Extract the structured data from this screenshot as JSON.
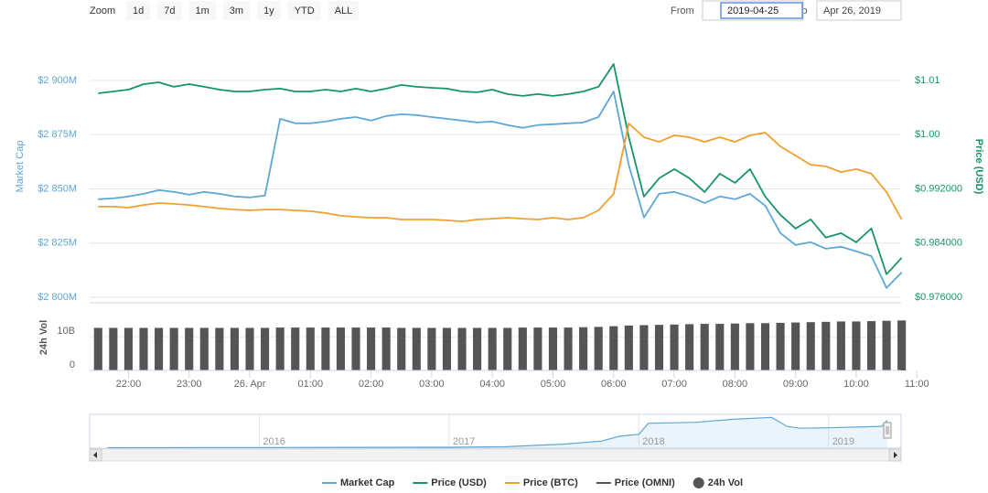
{
  "ui": {
    "zoom_label": "Zoom",
    "zoom_buttons": [
      "1d",
      "7d",
      "1m",
      "3m",
      "1y",
      "YTD",
      "ALL"
    ],
    "from_label": "From",
    "from_value": "2019-04-25",
    "to_label": "To",
    "to_value": "Apr 26, 2019"
  },
  "chart_data": [
    {
      "type": "line",
      "ylabel": "Market Cap",
      "y2label": "Price (USD)",
      "grid": true,
      "legend": "bottom",
      "x": [
        -2.5,
        -2.25,
        -2,
        -1.75,
        -1.5,
        -1.25,
        -1,
        -0.75,
        -0.5,
        -0.25,
        0,
        0.25,
        0.5,
        0.75,
        1,
        1.25,
        1.5,
        1.75,
        2,
        2.25,
        2.5,
        2.75,
        3,
        3.25,
        3.5,
        3.75,
        4,
        4.25,
        4.5,
        4.75,
        5,
        5.25,
        5.5,
        5.75,
        6,
        6.25,
        6.5,
        6.75,
        7,
        7.25,
        7.5,
        7.75,
        8,
        8.25,
        8.5,
        8.75,
        9,
        9.25,
        9.5,
        9.75,
        10,
        10.25,
        10.5,
        10.75
      ],
      "xlim": [
        -2.64,
        10.74
      ],
      "xticks": [
        {
          "value": -2,
          "label": "22:00"
        },
        {
          "value": -1,
          "label": "23:00"
        },
        {
          "value": 0,
          "label": "26. Apr"
        },
        {
          "value": 1,
          "label": "01:00"
        },
        {
          "value": 2,
          "label": "02:00"
        },
        {
          "value": 3,
          "label": "03:00"
        },
        {
          "value": 4,
          "label": "04:00"
        },
        {
          "value": 5,
          "label": "05:00"
        },
        {
          "value": 6,
          "label": "06:00"
        },
        {
          "value": 7,
          "label": "07:00"
        },
        {
          "value": 8,
          "label": "08:00"
        },
        {
          "value": 9,
          "label": "09:00"
        },
        {
          "value": 10,
          "label": "10:00"
        },
        {
          "value": 11,
          "label": "11:00"
        }
      ],
      "ylim": [
        2797.9,
        2922.3
      ],
      "yticks": [
        {
          "value": 2800,
          "label": "$2 800M"
        },
        {
          "value": 2825,
          "label": "$2 825M"
        },
        {
          "value": 2850,
          "label": "$2 850M"
        },
        {
          "value": 2875,
          "label": "$2 875M"
        },
        {
          "value": 2900,
          "label": "$2 900M"
        }
      ],
      "y2lim": [
        0.97533,
        1.01515
      ],
      "y2ticks": [
        {
          "value": 0.976,
          "label": "$0.976000"
        },
        {
          "value": 0.984,
          "label": "$0.984000"
        },
        {
          "value": 0.992,
          "label": "$0.992000"
        },
        {
          "value": 1.0,
          "label": "$1.00"
        },
        {
          "value": 1.008,
          "label": "$1.01"
        }
      ],
      "y3lim": [
        0.000185,
        0.000195
      ],
      "series": [
        {
          "name": "Market Cap",
          "color": "#5ea7d6",
          "values": [
            2845.2,
            2845.6,
            2846.5,
            2847.7,
            2849.4,
            2848.6,
            2847.3,
            2848.6,
            2847.7,
            2846.5,
            2846.0,
            2846.9,
            2882.3,
            2880.2,
            2880.2,
            2881.0,
            2882.3,
            2883.1,
            2881.5,
            2883.6,
            2884.4,
            2884.0,
            2883.1,
            2882.3,
            2881.5,
            2880.6,
            2881.0,
            2879.4,
            2878.1,
            2879.4,
            2879.8,
            2880.2,
            2880.6,
            2883.1,
            2894.9,
            2861.0,
            2836.8,
            2847.7,
            2848.6,
            2846.5,
            2843.5,
            2846.5,
            2845.2,
            2847.7,
            2842.2,
            2829.6,
            2824.1,
            2825.4,
            2822.4,
            2823.3,
            2821.2,
            2819.0,
            2804.3,
            2811.5
          ]
        },
        {
          "name": "Price (USD)",
          "color": "#17946a",
          "axis": "y2",
          "values": [
            1.00611,
            1.00638,
            1.00665,
            1.00746,
            1.00773,
            1.00706,
            1.00746,
            1.00706,
            1.00665,
            1.00638,
            1.00638,
            1.00665,
            1.00679,
            1.00638,
            1.00638,
            1.00665,
            1.00638,
            1.00679,
            1.00638,
            1.00679,
            1.00733,
            1.00706,
            1.00692,
            1.00679,
            1.00638,
            1.00625,
            1.00665,
            1.00598,
            1.00571,
            1.00598,
            1.00571,
            1.00598,
            1.00638,
            1.00706,
            1.01043,
            0.99964,
            0.99087,
            0.99357,
            0.99491,
            0.99357,
            0.99154,
            0.99424,
            0.99289,
            0.99491,
            0.99087,
            0.98817,
            0.98615,
            0.98749,
            0.9848,
            0.98547,
            0.98412,
            0.98615,
            0.9794,
            0.98183
          ]
        },
        {
          "name": "Price (BTC)",
          "color": "#f0a030",
          "axis": "y3",
          "values": [
            0.00018853,
            0.00018853,
            0.00018849,
            0.00018859,
            0.00018866,
            0.00018863,
            0.00018859,
            0.00018853,
            0.00018846,
            0.00018842,
            0.00018839,
            0.00018842,
            0.00018842,
            0.00018839,
            0.00018836,
            0.00018829,
            0.00018819,
            0.00018815,
            0.00018812,
            0.00018812,
            0.00018805,
            0.00018805,
            0.00018805,
            0.00018802,
            0.00018798,
            0.00018805,
            0.00018808,
            0.00018812,
            0.00018808,
            0.00018805,
            0.00018812,
            0.00018805,
            0.00018812,
            0.00018839,
            0.000189,
            0.00019161,
            0.0001911,
            0.00019093,
            0.00019117,
            0.0001911,
            0.00019093,
            0.0001911,
            0.00019093,
            0.00019117,
            0.00019127,
            0.00019076,
            0.00019042,
            0.00019008,
            0.00019002,
            0.00018981,
            0.00018992,
            0.00018975,
            0.00018907,
            0.00018805
          ]
        },
        {
          "name": "Price (OMNI)",
          "color": "#555555",
          "visible": false
        }
      ]
    },
    {
      "type": "bar",
      "ylabel": "24h Vol",
      "x": [
        -2.5,
        -2.25,
        -2,
        -1.75,
        -1.5,
        -1.25,
        -1,
        -0.75,
        -0.5,
        -0.25,
        0,
        0.25,
        0.5,
        0.75,
        1,
        1.25,
        1.5,
        1.75,
        2,
        2.25,
        2.5,
        2.75,
        3,
        3.25,
        3.5,
        3.75,
        4,
        4.25,
        4.5,
        4.75,
        5,
        5.25,
        5.5,
        5.75,
        6,
        6.25,
        6.5,
        6.75,
        7,
        7.25,
        7.5,
        7.75,
        8,
        8.25,
        8.5,
        8.75,
        9,
        9.25,
        9.5,
        9.75,
        10,
        10.25,
        10.5,
        10.75
      ],
      "xlim": [
        -2.64,
        10.74
      ],
      "ylim": [
        0,
        19.5
      ],
      "yticks": [
        0,
        {
          "value": 10,
          "label": "10B"
        }
      ],
      "series": [
        {
          "name": "24h Vol",
          "color": "#555555",
          "values": [
            12.6,
            12.6,
            12.6,
            12.6,
            12.6,
            12.6,
            12.6,
            12.6,
            12.6,
            12.6,
            12.6,
            12.6,
            12.7,
            12.7,
            12.7,
            12.7,
            12.7,
            12.7,
            12.7,
            12.7,
            12.6,
            12.6,
            12.6,
            12.6,
            12.6,
            12.6,
            12.6,
            12.6,
            12.7,
            12.7,
            12.7,
            12.7,
            12.8,
            12.9,
            13.1,
            13.3,
            13.4,
            13.5,
            13.6,
            13.7,
            13.8,
            13.8,
            13.9,
            14.0,
            14.0,
            14.1,
            14.2,
            14.3,
            14.4,
            14.5,
            14.5,
            14.6,
            14.7,
            14.8
          ]
        }
      ]
    },
    {
      "type": "area",
      "color": "#5ea7d6",
      "x": [
        2015.2,
        2016,
        2016.5,
        2017,
        2017.3,
        2017.6,
        2017.8,
        2017.9,
        2018.0,
        2018.05,
        2018.3,
        2018.5,
        2018.7,
        2018.78,
        2018.85,
        2019.0,
        2019.2,
        2019.28,
        2019.31
      ],
      "values": [
        50,
        60,
        80,
        90,
        150,
        400,
        700,
        1200,
        1400,
        2500,
        2600,
        2900,
        3100,
        2200,
        2000,
        2050,
        2150,
        2200,
        2800
      ],
      "xlim": [
        2015.106,
        2019.31
      ],
      "xticks": [
        2016,
        2017,
        2018,
        2019
      ],
      "ylim": [
        0,
        3400
      ]
    }
  ]
}
